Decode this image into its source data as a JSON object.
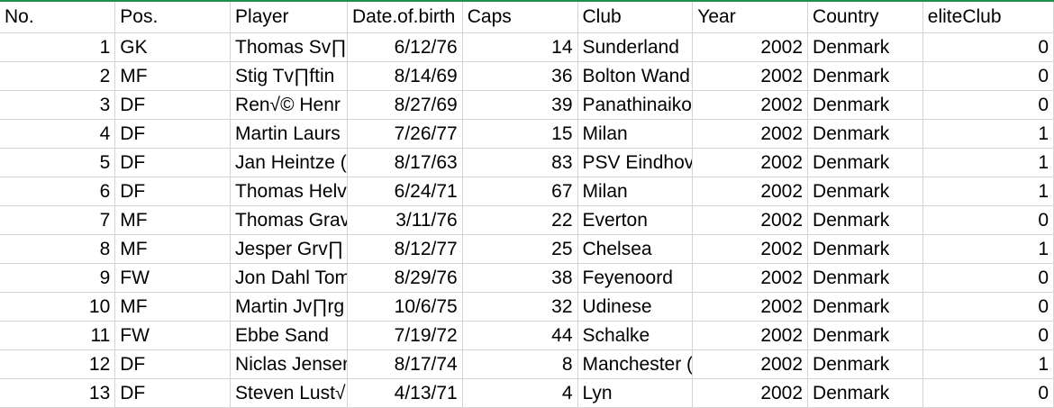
{
  "sheet": {
    "headers": [
      "No.",
      "Pos.",
      "Player",
      "Date.of.birth",
      "Caps",
      "Club",
      "Year",
      "Country",
      "eliteClub"
    ],
    "rows": [
      {
        "no": "1",
        "pos": "GK",
        "player": "Thomas Sv∏",
        "dob": "6/12/76",
        "caps": "14",
        "club": "Sunderland",
        "year": "2002",
        "country": "Denmark",
        "elite": "0"
      },
      {
        "no": "2",
        "pos": "MF",
        "player": "Stig Tv∏ftin",
        "dob": "8/14/69",
        "caps": "36",
        "club": "Bolton Wand",
        "year": "2002",
        "country": "Denmark",
        "elite": "0"
      },
      {
        "no": "3",
        "pos": "DF",
        "player": "Ren√© Henr",
        "dob": "8/27/69",
        "caps": "39",
        "club": "Panathinaiko",
        "year": "2002",
        "country": "Denmark",
        "elite": "0"
      },
      {
        "no": "4",
        "pos": "DF",
        "player": "Martin Laurs",
        "dob": "7/26/77",
        "caps": "15",
        "club": "Milan",
        "year": "2002",
        "country": "Denmark",
        "elite": "1"
      },
      {
        "no": "5",
        "pos": "DF",
        "player": "Jan Heintze (",
        "dob": "8/17/63",
        "caps": "83",
        "club": "PSV Eindhove",
        "year": "2002",
        "country": "Denmark",
        "elite": "1"
      },
      {
        "no": "6",
        "pos": "DF",
        "player": "Thomas Helv",
        "dob": "6/24/71",
        "caps": "67",
        "club": "Milan",
        "year": "2002",
        "country": "Denmark",
        "elite": "1"
      },
      {
        "no": "7",
        "pos": "MF",
        "player": "Thomas Grav",
        "dob": "3/11/76",
        "caps": "22",
        "club": "Everton",
        "year": "2002",
        "country": "Denmark",
        "elite": "0"
      },
      {
        "no": "8",
        "pos": "MF",
        "player": "Jesper Grv∏",
        "dob": "8/12/77",
        "caps": "25",
        "club": "Chelsea",
        "year": "2002",
        "country": "Denmark",
        "elite": "1"
      },
      {
        "no": "9",
        "pos": "FW",
        "player": "Jon Dahl Tom",
        "dob": "8/29/76",
        "caps": "38",
        "club": "Feyenoord",
        "year": "2002",
        "country": "Denmark",
        "elite": "0"
      },
      {
        "no": "10",
        "pos": "MF",
        "player": "Martin Jv∏rg",
        "dob": "10/6/75",
        "caps": "32",
        "club": "Udinese",
        "year": "2002",
        "country": "Denmark",
        "elite": "0"
      },
      {
        "no": "11",
        "pos": "FW",
        "player": "Ebbe Sand",
        "dob": "7/19/72",
        "caps": "44",
        "club": "Schalke",
        "year": "2002",
        "country": "Denmark",
        "elite": "0"
      },
      {
        "no": "12",
        "pos": "DF",
        "player": "Niclas Jensen",
        "dob": "8/17/74",
        "caps": "8",
        "club": "Manchester (",
        "year": "2002",
        "country": "Denmark",
        "elite": "1"
      },
      {
        "no": "13",
        "pos": "DF",
        "player": "Steven Lust√",
        "dob": "4/13/71",
        "caps": "4",
        "club": "Lyn",
        "year": "2002",
        "country": "Denmark",
        "elite": "0"
      }
    ]
  }
}
